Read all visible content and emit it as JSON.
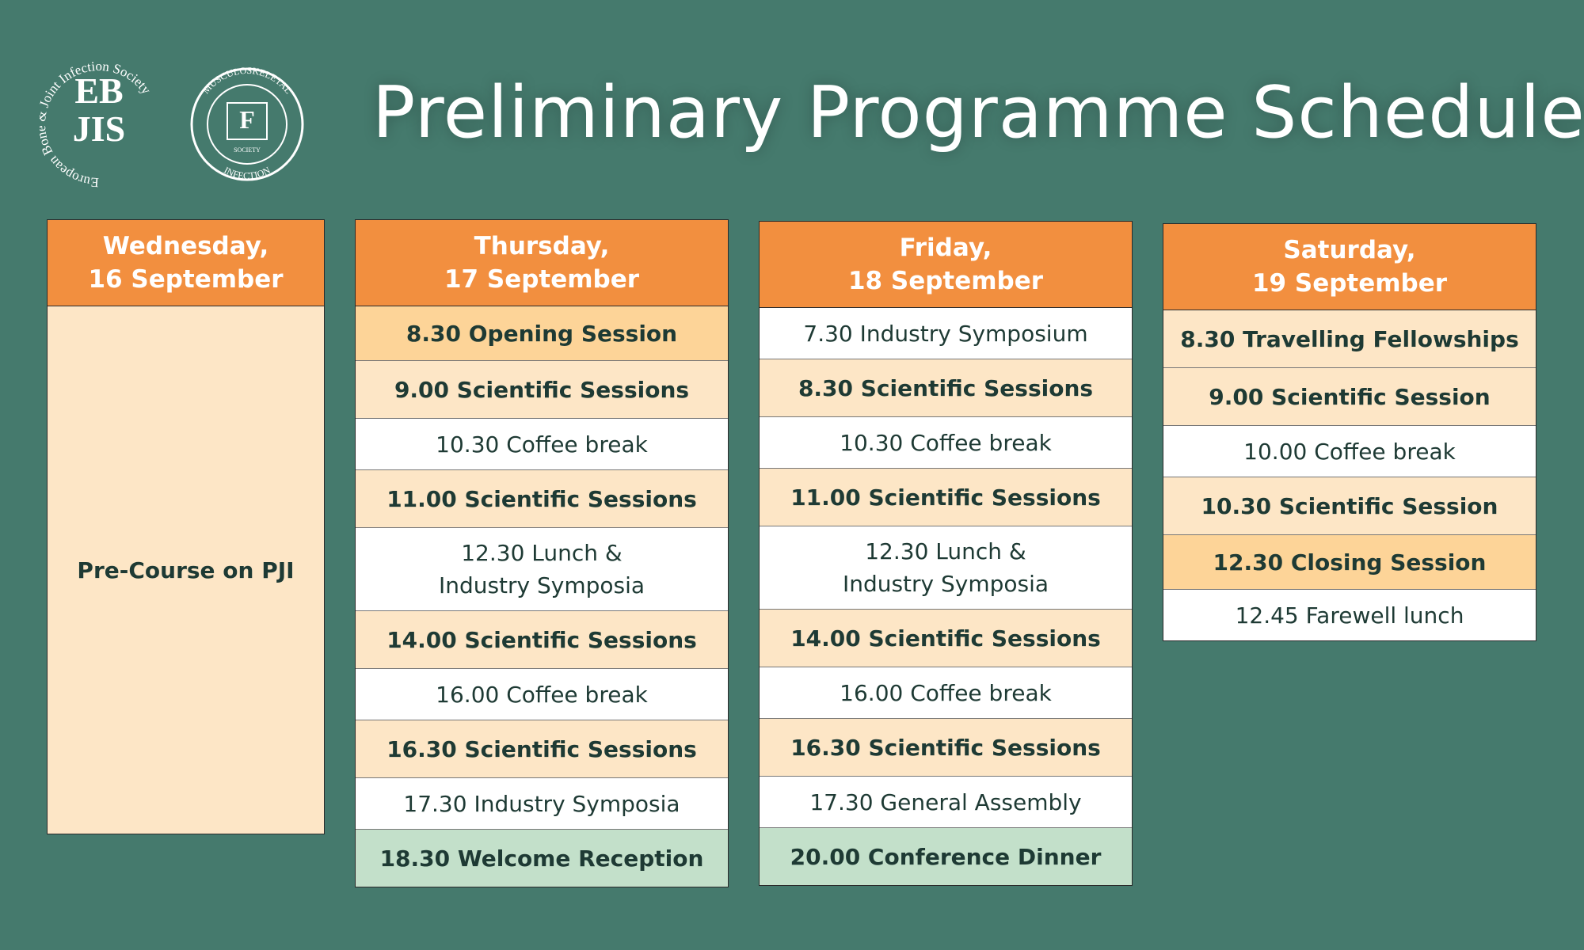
{
  "header": {
    "title": "Preliminary Programme Schedule",
    "logo_ebjis": {
      "top": "EB",
      "bottom": "JIS",
      "ring": "European Bone & Joint Infection Society"
    },
    "logo_mis": {
      "ring_top": "MUSCULOSKELETAL",
      "ring_bottom": "INFECTION",
      "inner": "SOCIETY"
    }
  },
  "columns": [
    {
      "header": [
        "Wednesday,",
        "16 September"
      ],
      "rows": [
        {
          "lines": [
            "Pre-Course on PJI"
          ],
          "kind": "full"
        }
      ]
    },
    {
      "header": [
        "Thursday,",
        "17 September"
      ],
      "rows": [
        {
          "lines": [
            "8.30 Opening Session"
          ],
          "kind": "highlight"
        },
        {
          "lines": [
            "9.00 Scientific Sessions"
          ],
          "kind": "session"
        },
        {
          "lines": [
            "10.30 Coffee break"
          ],
          "kind": "break"
        },
        {
          "lines": [
            "11.00 Scientific Sessions"
          ],
          "kind": "session"
        },
        {
          "lines": [
            "12.30 Lunch &",
            "Industry Symposia"
          ],
          "kind": "break"
        },
        {
          "lines": [
            "14.00 Scientific Sessions"
          ],
          "kind": "session"
        },
        {
          "lines": [
            "16.00 Coffee break"
          ],
          "kind": "break"
        },
        {
          "lines": [
            "16.30 Scientific Sessions"
          ],
          "kind": "session"
        },
        {
          "lines": [
            "17.30 Industry Symposia"
          ],
          "kind": "break"
        },
        {
          "lines": [
            "18.30 Welcome Reception"
          ],
          "kind": "social"
        }
      ]
    },
    {
      "header": [
        "Friday,",
        "18 September"
      ],
      "rows": [
        {
          "lines": [
            "7.30 Industry Symposium"
          ],
          "kind": "break"
        },
        {
          "lines": [
            "8.30 Scientific Sessions"
          ],
          "kind": "session"
        },
        {
          "lines": [
            "10.30 Coffee break"
          ],
          "kind": "break"
        },
        {
          "lines": [
            "11.00 Scientific Sessions"
          ],
          "kind": "session"
        },
        {
          "lines": [
            "12.30 Lunch &",
            "Industry Symposia"
          ],
          "kind": "break"
        },
        {
          "lines": [
            "14.00 Scientific Sessions"
          ],
          "kind": "session"
        },
        {
          "lines": [
            "16.00 Coffee break"
          ],
          "kind": "break"
        },
        {
          "lines": [
            "16.30 Scientific Sessions"
          ],
          "kind": "session"
        },
        {
          "lines": [
            "17.30 General Assembly"
          ],
          "kind": "break"
        },
        {
          "lines": [
            "20.00 Conference Dinner"
          ],
          "kind": "social"
        }
      ]
    },
    {
      "header": [
        "Saturday,",
        "19 September"
      ],
      "rows": [
        {
          "lines": [
            "8.30 Travelling Fellowships"
          ],
          "kind": "session"
        },
        {
          "lines": [
            "9.00 Scientific Session"
          ],
          "kind": "session"
        },
        {
          "lines": [
            "10.00 Coffee break"
          ],
          "kind": "break"
        },
        {
          "lines": [
            "10.30 Scientific Session"
          ],
          "kind": "session"
        },
        {
          "lines": [
            "12.30 Closing Session"
          ],
          "kind": "highlight"
        },
        {
          "lines": [
            "12.45 Farewell lunch"
          ],
          "kind": "break"
        }
      ]
    }
  ]
}
